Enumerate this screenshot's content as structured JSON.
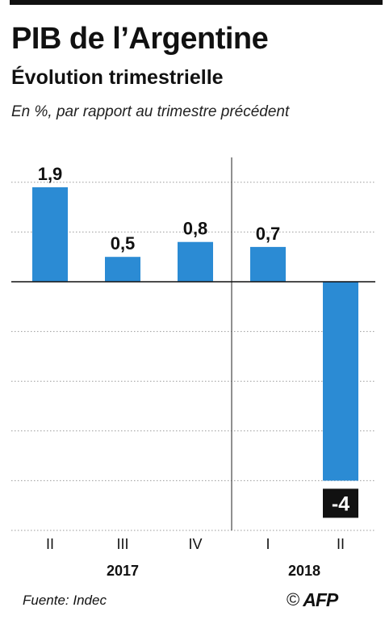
{
  "header": {
    "title": "PIB de l’Argentine",
    "subtitle": "Évolution trimestrielle",
    "note": "En %, par rapport au trimestre précédent"
  },
  "chart_data": {
    "type": "bar",
    "categories": [
      "II",
      "III",
      "IV",
      "I",
      "II"
    ],
    "groups": [
      {
        "label": "2017",
        "categories": [
          "II",
          "III",
          "IV"
        ]
      },
      {
        "label": "2018",
        "categories": [
          "I",
          "II"
        ]
      }
    ],
    "values": [
      1.9,
      0.5,
      0.8,
      0.7,
      -4
    ],
    "value_labels": [
      "1,9",
      "0,5",
      "0,8",
      "0,7",
      "-4"
    ],
    "ylim": [
      -5,
      2.5
    ],
    "grid": true,
    "bar_color": "#2b8bd4",
    "highlight_label_color": "#111111"
  },
  "footer": {
    "source": "Fuente: Indec",
    "copyright": "©",
    "logo": "AFP"
  }
}
